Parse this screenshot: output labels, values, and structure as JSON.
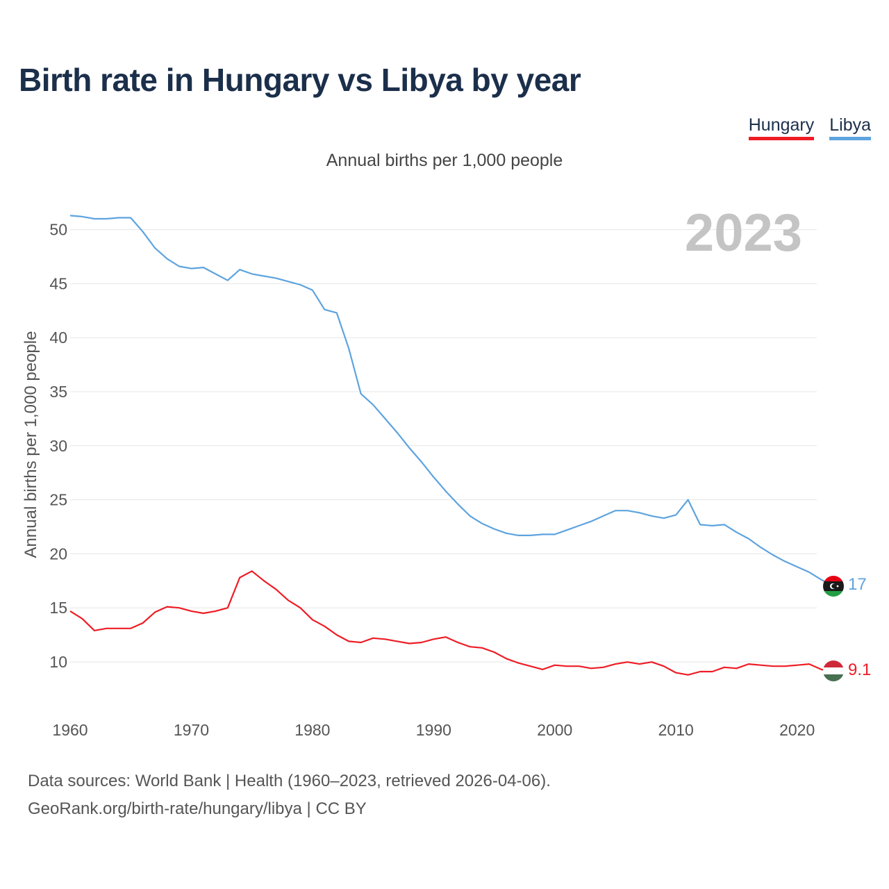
{
  "title": "Birth rate in Hungary vs Libya by year",
  "subtitle": "Annual births per 1,000 people",
  "legend": [
    {
      "label": "Hungary",
      "color": "#ee1c25"
    },
    {
      "label": "Libya",
      "color": "#5da3df"
    }
  ],
  "year_badge": "2023",
  "source": {
    "line1": "Data sources: World Bank | Health (1960–2023, retrieved 2026-04-06).",
    "line2": "GeoRank.org/birth-rate/hungary/libya | CC BY"
  },
  "end_labels": {
    "libya": "17",
    "hungary": "9.1"
  },
  "chart_data": {
    "type": "line",
    "title": "Birth rate in Hungary vs Libya by year",
    "xlabel": "",
    "ylabel": "Annual births per 1,000 people",
    "xlim": [
      1960,
      2023
    ],
    "ylim": [
      6,
      53
    ],
    "xticks": [
      1960,
      1970,
      1980,
      1990,
      2000,
      2010,
      2020
    ],
    "yticks": [
      10,
      15,
      20,
      25,
      30,
      35,
      40,
      45,
      50
    ],
    "grid": true,
    "legend_position": "top-right",
    "x": [
      1960,
      1961,
      1962,
      1963,
      1964,
      1965,
      1966,
      1967,
      1968,
      1969,
      1970,
      1971,
      1972,
      1973,
      1974,
      1975,
      1976,
      1977,
      1978,
      1979,
      1980,
      1981,
      1982,
      1983,
      1984,
      1985,
      1986,
      1987,
      1988,
      1989,
      1990,
      1991,
      1992,
      1993,
      1994,
      1995,
      1996,
      1997,
      1998,
      1999,
      2000,
      2001,
      2002,
      2003,
      2004,
      2005,
      2006,
      2007,
      2008,
      2009,
      2010,
      2011,
      2012,
      2013,
      2014,
      2015,
      2016,
      2017,
      2018,
      2019,
      2020,
      2021,
      2022,
      2023
    ],
    "series": [
      {
        "name": "Hungary",
        "color": "#ee1c25",
        "values": [
          14.7,
          14.0,
          12.9,
          13.1,
          13.1,
          13.1,
          13.6,
          14.6,
          15.1,
          15.0,
          14.7,
          14.5,
          14.7,
          15.0,
          17.8,
          18.4,
          17.5,
          16.7,
          15.7,
          15.0,
          13.9,
          13.3,
          12.5,
          11.9,
          11.8,
          12.2,
          12.1,
          11.9,
          11.7,
          11.8,
          12.1,
          12.3,
          11.8,
          11.4,
          11.3,
          10.9,
          10.3,
          9.9,
          9.6,
          9.3,
          9.7,
          9.6,
          9.6,
          9.4,
          9.5,
          9.8,
          9.99,
          9.8,
          9.99,
          9.6,
          9.0,
          8.8,
          9.1,
          9.1,
          9.5,
          9.4,
          9.8,
          9.7,
          9.6,
          9.6,
          9.7,
          9.8,
          9.3,
          9.1
        ]
      },
      {
        "name": "Libya",
        "color": "#5da3df",
        "values": [
          51.3,
          51.2,
          51.0,
          51.0,
          51.1,
          51.1,
          49.8,
          48.3,
          47.3,
          46.6,
          46.4,
          46.5,
          45.9,
          45.3,
          46.3,
          45.9,
          45.7,
          45.5,
          45.2,
          44.9,
          44.4,
          42.6,
          42.3,
          39.0,
          34.8,
          33.8,
          32.5,
          31.2,
          29.8,
          28.5,
          27.1,
          25.8,
          24.6,
          23.5,
          22.8,
          22.3,
          21.9,
          21.7,
          21.7,
          21.8,
          21.8,
          22.2,
          22.6,
          23.0,
          23.5,
          24.0,
          24.0,
          23.8,
          23.5,
          23.3,
          23.6,
          25.0,
          22.7,
          22.6,
          22.7,
          22.0,
          21.4,
          20.6,
          19.9,
          19.3,
          18.8,
          18.3,
          17.6,
          17.0
        ]
      }
    ]
  }
}
